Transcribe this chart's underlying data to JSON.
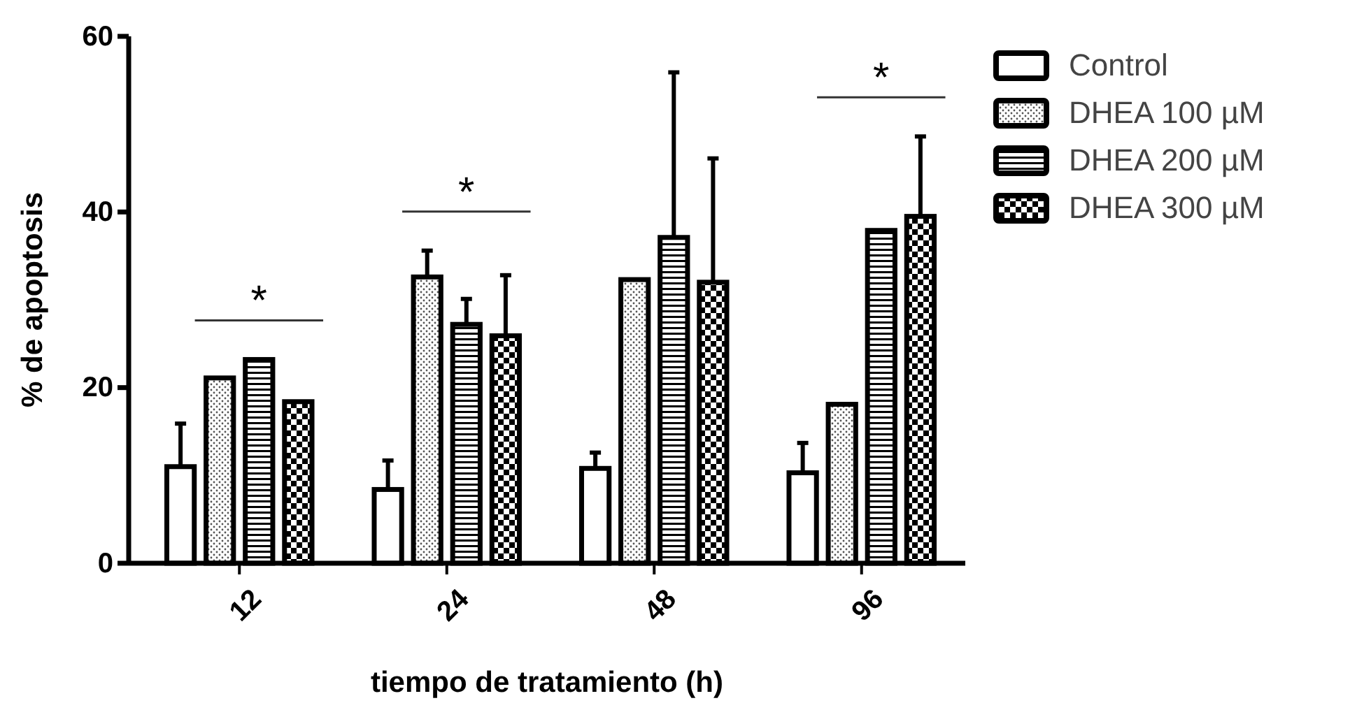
{
  "chart_data": {
    "type": "bar",
    "xlabel": "tiempo de tratamiento (h)",
    "ylabel": "% de apoptosis",
    "categories": [
      "12",
      "24",
      "48",
      "96"
    ],
    "series": [
      {
        "name": "Control",
        "color": "#000000",
        "values": [
          11,
          8.4,
          10.8,
          10.3
        ],
        "errors": [
          [
            11,
            15.9
          ],
          [
            8.4,
            11.7
          ],
          [
            10.8,
            12.6
          ],
          [
            10.3,
            13.7
          ]
        ]
      },
      {
        "name": "DHEA 100 µM",
        "color": "#000000",
        "values": [
          21.1,
          32.6,
          32.3,
          18.1
        ],
        "errors": [
          null,
          [
            32.6,
            35.6
          ],
          null,
          null
        ]
      },
      {
        "name": "DHEA 200 µM",
        "color": "#000000",
        "values": [
          23.2,
          27.2,
          37.1,
          37.9
        ],
        "errors": [
          null,
          [
            27.2,
            30.1
          ],
          [
            37.1,
            55.9
          ],
          null
        ]
      },
      {
        "name": "DHEA 300 µM",
        "color": "#000000",
        "values": [
          18.4,
          25.9,
          32,
          39.5
        ],
        "errors": [
          null,
          [
            25.9,
            32.8
          ],
          [
            32,
            46.1
          ],
          [
            39.5,
            48.6
          ]
        ]
      }
    ],
    "ylim": [
      0,
      60
    ],
    "yticks": [
      0,
      20,
      40,
      60
    ],
    "grid": false,
    "legend": "right",
    "annotations": [
      "*",
      "*",
      "*"
    ]
  }
}
